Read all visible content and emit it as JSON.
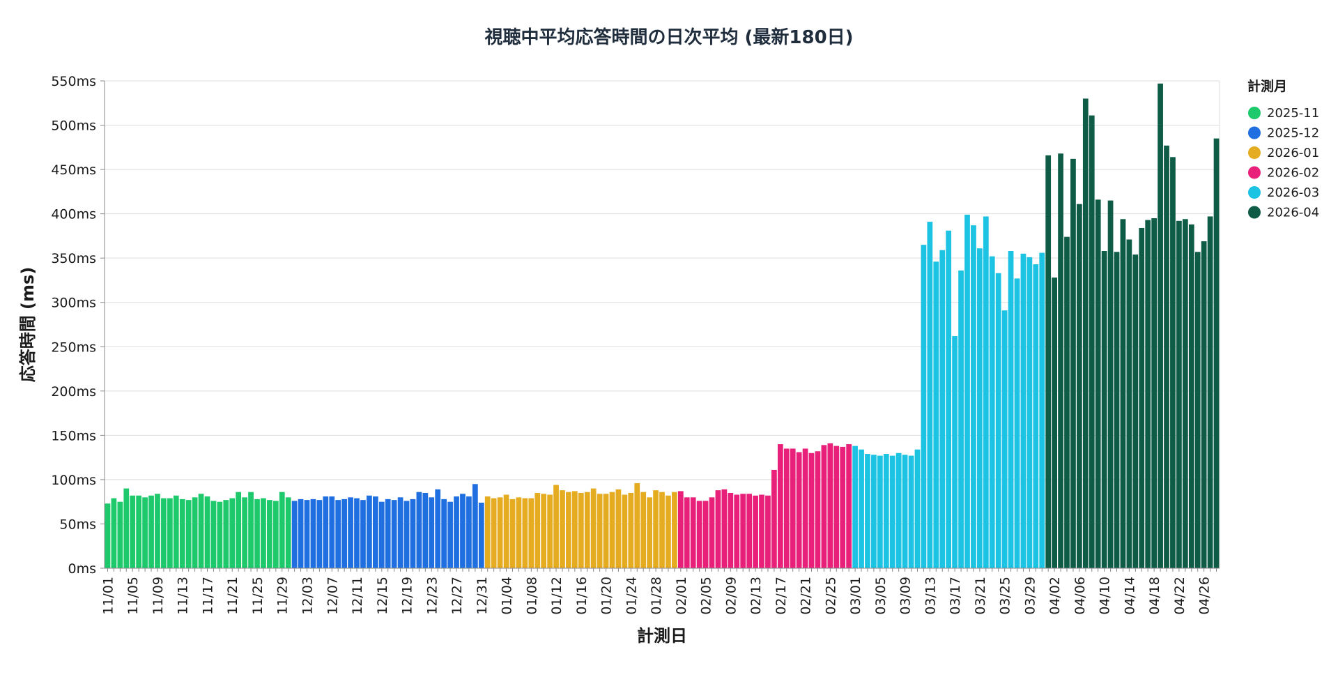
{
  "chart_data": {
    "type": "bar",
    "title": "視聴中平均応答時間の日次平均 (最新180日)",
    "xlabel": "計測日",
    "ylabel": "応答時間 (ms)",
    "ylim": [
      0,
      550
    ],
    "y_ticks": [
      0,
      50,
      100,
      150,
      200,
      250,
      300,
      350,
      400,
      450,
      500,
      550
    ],
    "y_tick_suffix": "ms",
    "grid": true,
    "legend_position": "right",
    "legend_title": "計測月",
    "series": [
      {
        "name": "2025-11",
        "color": "#1dc96b",
        "dates": [
          "11/01",
          "11/02",
          "11/03",
          "11/04",
          "11/05",
          "11/06",
          "11/07",
          "11/08",
          "11/09",
          "11/10",
          "11/11",
          "11/12",
          "11/13",
          "11/14",
          "11/15",
          "11/16",
          "11/17",
          "11/18",
          "11/19",
          "11/20",
          "11/21",
          "11/22",
          "11/23",
          "11/24",
          "11/25",
          "11/26",
          "11/27",
          "11/28",
          "11/29",
          "11/30"
        ],
        "values": [
          73,
          79,
          75,
          90,
          82,
          82,
          80,
          82,
          84,
          79,
          79,
          82,
          78,
          77,
          80,
          84,
          81,
          76,
          75,
          77,
          79,
          86,
          80,
          86,
          78,
          79,
          77,
          76,
          86,
          80
        ]
      },
      {
        "name": "2025-12",
        "color": "#1f6fe0",
        "dates": [
          "12/01",
          "12/02",
          "12/03",
          "12/04",
          "12/05",
          "12/06",
          "12/07",
          "12/08",
          "12/09",
          "12/10",
          "12/11",
          "12/12",
          "12/13",
          "12/14",
          "12/15",
          "12/16",
          "12/17",
          "12/18",
          "12/19",
          "12/20",
          "12/21",
          "12/22",
          "12/23",
          "12/24",
          "12/25",
          "12/26",
          "12/27",
          "12/28",
          "12/29",
          "12/30",
          "12/31"
        ],
        "values": [
          76,
          78,
          77,
          78,
          77,
          81,
          81,
          77,
          78,
          80,
          79,
          77,
          82,
          81,
          75,
          78,
          77,
          80,
          76,
          78,
          86,
          85,
          80,
          89,
          78,
          75,
          81,
          84,
          81,
          95,
          74
        ]
      },
      {
        "name": "2026-01",
        "color": "#e6ac21",
        "dates": [
          "01/01",
          "01/02",
          "01/03",
          "01/04",
          "01/05",
          "01/06",
          "01/07",
          "01/08",
          "01/09",
          "01/10",
          "01/11",
          "01/12",
          "01/13",
          "01/14",
          "01/15",
          "01/16",
          "01/17",
          "01/18",
          "01/19",
          "01/20",
          "01/21",
          "01/22",
          "01/23",
          "01/24",
          "01/25",
          "01/26",
          "01/27",
          "01/28",
          "01/29",
          "01/30",
          "01/31"
        ],
        "values": [
          81,
          79,
          80,
          83,
          78,
          80,
          79,
          79,
          85,
          84,
          83,
          94,
          88,
          86,
          87,
          85,
          86,
          90,
          84,
          84,
          86,
          89,
          83,
          85,
          96,
          86,
          80,
          88,
          86,
          82,
          86
        ]
      },
      {
        "name": "2026-02",
        "color": "#e8207a",
        "dates": [
          "02/01",
          "02/02",
          "02/03",
          "02/04",
          "02/05",
          "02/06",
          "02/07",
          "02/08",
          "02/09",
          "02/10",
          "02/11",
          "02/12",
          "02/13",
          "02/14",
          "02/15",
          "02/16",
          "02/17",
          "02/18",
          "02/19",
          "02/20",
          "02/21",
          "02/22",
          "02/23",
          "02/24",
          "02/25",
          "02/26",
          "02/27",
          "02/28"
        ],
        "values": [
          87,
          80,
          80,
          76,
          76,
          80,
          88,
          89,
          85,
          83,
          84,
          84,
          82,
          83,
          82,
          111,
          140,
          135,
          135,
          131,
          135,
          130,
          132,
          139,
          141,
          138,
          137,
          140
        ]
      },
      {
        "name": "2026-03",
        "color": "#1cc3e3",
        "dates": [
          "03/01",
          "03/02",
          "03/03",
          "03/04",
          "03/05",
          "03/06",
          "03/07",
          "03/08",
          "03/09",
          "03/10",
          "03/11",
          "03/12",
          "03/13",
          "03/14",
          "03/15",
          "03/16",
          "03/17",
          "03/18",
          "03/19",
          "03/20",
          "03/21",
          "03/22",
          "03/23",
          "03/24",
          "03/25",
          "03/26",
          "03/27",
          "03/28",
          "03/29",
          "03/30",
          "03/31"
        ],
        "values": [
          138,
          134,
          129,
          128,
          127,
          129,
          127,
          130,
          128,
          127,
          134,
          365,
          391,
          346,
          359,
          381,
          262,
          336,
          399,
          387,
          361,
          397,
          352,
          333,
          291,
          358,
          327,
          355,
          351,
          343,
          356
        ]
      },
      {
        "name": "2026-04",
        "color": "#0e5c45",
        "dates": [
          "04/01",
          "04/02",
          "04/03",
          "04/04",
          "04/05",
          "04/06",
          "04/07",
          "04/08",
          "04/09",
          "04/10",
          "04/11",
          "04/12",
          "04/13",
          "04/14",
          "04/15",
          "04/16",
          "04/17",
          "04/18",
          "04/19",
          "04/20",
          "04/21",
          "04/22",
          "04/23",
          "04/24",
          "04/25",
          "04/26",
          "04/27",
          "04/28"
        ],
        "values": [
          466,
          328,
          468,
          374,
          462,
          411,
          530,
          511,
          416,
          358,
          415,
          357,
          394,
          371,
          354,
          384,
          393,
          395,
          547,
          477,
          464,
          392,
          394,
          388,
          357,
          369,
          397,
          485
        ]
      }
    ],
    "x_tick_labels": [
      "11/01",
      "11/05",
      "11/09",
      "11/13",
      "11/17",
      "11/21",
      "11/25",
      "11/29",
      "12/03",
      "12/07",
      "12/11",
      "12/15",
      "12/19",
      "12/23",
      "12/27",
      "12/31",
      "01/04",
      "01/08",
      "01/12",
      "01/16",
      "01/20",
      "01/24",
      "01/28",
      "02/01",
      "02/05",
      "02/09",
      "02/13",
      "02/17",
      "02/21",
      "02/25",
      "03/01",
      "03/05",
      "03/09",
      "03/13",
      "03/17",
      "03/21",
      "03/25",
      "03/29",
      "04/02",
      "04/06",
      "04/10",
      "04/14",
      "04/18",
      "04/22",
      "04/26"
    ]
  }
}
